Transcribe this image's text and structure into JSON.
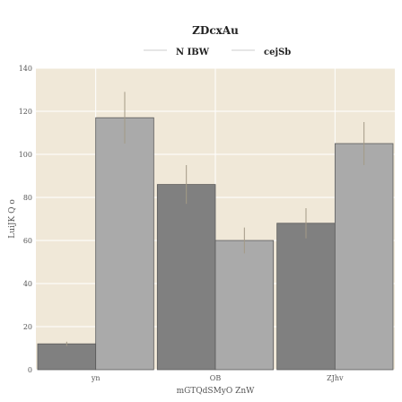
{
  "chart_data": {
    "type": "bar",
    "title": "ZDcxAu",
    "xlabel": "mGTQdSMyO ZnW",
    "ylabel": "LuiJK Q o",
    "categories": [
      "yn",
      "OB",
      "ZJhv"
    ],
    "series": [
      {
        "name": "N IBW",
        "values": [
          12,
          86,
          68
        ],
        "errors": [
          1,
          9,
          7
        ],
        "color": "#808080"
      },
      {
        "name": "cejSb",
        "values": [
          117,
          60,
          105
        ],
        "errors": [
          12,
          6,
          10
        ],
        "color": "#aaaaaa"
      }
    ],
    "ylim": [
      0,
      140
    ],
    "yticks": [
      0,
      20,
      40,
      60,
      80,
      100,
      120,
      140
    ],
    "grid": true,
    "legend_position": "top-center",
    "background_color": "#f0e8d8",
    "gridline_color": "#ffffff",
    "error_bar_color": "#a39a86"
  }
}
